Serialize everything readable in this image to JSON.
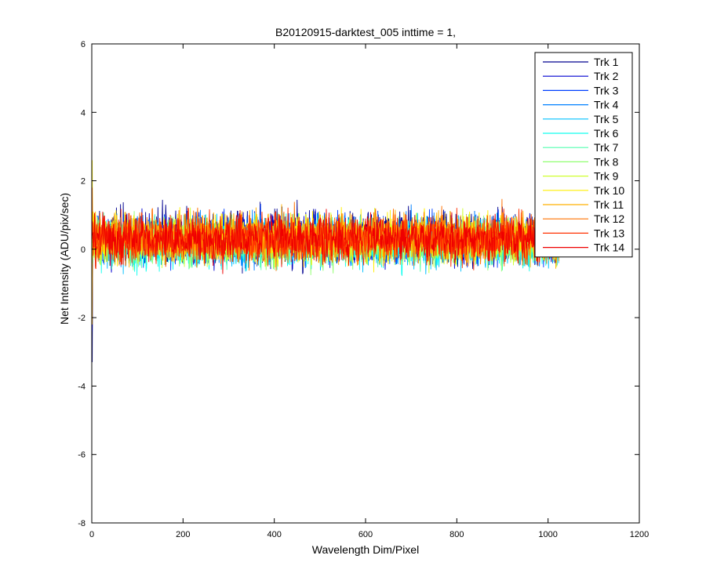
{
  "chart_data": {
    "type": "line",
    "title": "B20120915-darktest_005 inttime = 1,",
    "xlabel": "Wavelength Dim/Pixel",
    "ylabel": "Net Intensity (ADU/pix/sec)",
    "xlim": [
      0,
      1200
    ],
    "ylim": [
      -8,
      6
    ],
    "xticks": [
      "0",
      "200",
      "400",
      "600",
      "800",
      "1000",
      "1200"
    ],
    "yticks": [
      "-8",
      "-6",
      "-4",
      "-2",
      "0",
      "2",
      "4",
      "6"
    ],
    "grid": false,
    "legend_position": "top-right",
    "x_range": [
      1,
      1024
    ],
    "series": [
      {
        "name": "Trk 1",
        "color": "#00008F",
        "mean": 0.34,
        "noise": 0.38,
        "start_value": -3.3
      },
      {
        "name": "Trk 2",
        "color": "#0000D0",
        "mean": 0.32,
        "noise": 0.36,
        "start_value": -2.4
      },
      {
        "name": "Trk 3",
        "color": "#0040FF",
        "mean": 0.3,
        "noise": 0.35,
        "start_value": 1.2
      },
      {
        "name": "Trk 4",
        "color": "#0080FF",
        "mean": 0.25,
        "noise": 0.35,
        "start_value": 0.9
      },
      {
        "name": "Trk 5",
        "color": "#00C0FF",
        "mean": 0.18,
        "noise": 0.34,
        "start_value": 0.6
      },
      {
        "name": "Trk 6",
        "color": "#10FFEF",
        "mean": 0.15,
        "noise": 0.33,
        "start_value": 0.5
      },
      {
        "name": "Trk 7",
        "color": "#50FFAF",
        "mean": 0.2,
        "noise": 0.33,
        "start_value": 0.4
      },
      {
        "name": "Trk 8",
        "color": "#90FF70",
        "mean": 0.22,
        "noise": 0.34,
        "start_value": 0.8
      },
      {
        "name": "Trk 9",
        "color": "#CFFF30",
        "mean": 0.26,
        "noise": 0.34,
        "start_value": 1.5
      },
      {
        "name": "Trk 10",
        "color": "#FFEF00",
        "mean": 0.3,
        "noise": 0.35,
        "start_value": 2.6
      },
      {
        "name": "Trk 11",
        "color": "#FFB000",
        "mean": 0.34,
        "noise": 0.36,
        "start_value": -2.2
      },
      {
        "name": "Trk 12",
        "color": "#FF7000",
        "mean": 0.33,
        "noise": 0.35,
        "start_value": 1.8
      },
      {
        "name": "Trk 13",
        "color": "#FF3000",
        "mean": 0.3,
        "noise": 0.34,
        "start_value": 0.3
      },
      {
        "name": "Trk 14",
        "color": "#EF0000",
        "mean": 0.3,
        "noise": 0.33,
        "start_value": 0.4
      }
    ]
  }
}
